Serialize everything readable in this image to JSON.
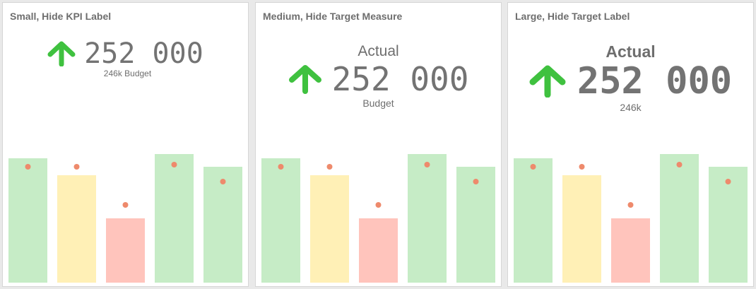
{
  "colors": {
    "good": "#c6ecc6",
    "warn": "#fff0b6",
    "bad": "#ffc4bc",
    "target_dot": "#ee8a6c",
    "arrow": "#3fc13f",
    "text": "#6e6e6e"
  },
  "cards": [
    {
      "title": "Small, Hide KPI Label",
      "kpi_label": "",
      "kpi_value": "252 000",
      "kpi_sub": "246k Budget",
      "arrow_icon": "arrow-up-icon"
    },
    {
      "title": "Medium, Hide Target Measure",
      "kpi_label": "Actual",
      "kpi_value": "252 000",
      "kpi_sub": "Budget",
      "arrow_icon": "arrow-up-icon"
    },
    {
      "title": "Large, Hide Target Label",
      "kpi_label": "Actual",
      "kpi_value": "252 000",
      "kpi_sub": "246k",
      "arrow_icon": "arrow-up-icon"
    }
  ],
  "chart_data": [
    {
      "type": "bar",
      "categories": [
        "",
        "",
        "",
        "",
        ""
      ],
      "series": [
        {
          "values": [
            176,
            152,
            91,
            182,
            164
          ]
        },
        {
          "values": [
            164,
            164,
            110,
            167,
            143
          ]
        }
      ],
      "bar_status": [
        "good",
        "warn",
        "bad",
        "good",
        "good"
      ],
      "ylim": [
        0,
        200
      ],
      "grid": false
    },
    {
      "type": "bar",
      "categories": [
        "",
        "",
        "",
        "",
        ""
      ],
      "series": [
        {
          "values": [
            176,
            152,
            91,
            182,
            164
          ]
        },
        {
          "values": [
            164,
            164,
            110,
            167,
            143
          ]
        }
      ],
      "bar_status": [
        "good",
        "warn",
        "bad",
        "good",
        "good"
      ],
      "ylim": [
        0,
        200
      ],
      "grid": false
    },
    {
      "type": "bar",
      "categories": [
        "",
        "",
        "",
        "",
        ""
      ],
      "series": [
        {
          "values": [
            176,
            152,
            91,
            182,
            164
          ]
        },
        {
          "values": [
            164,
            164,
            110,
            167,
            143
          ]
        }
      ],
      "bar_status": [
        "good",
        "warn",
        "bad",
        "good",
        "good"
      ],
      "ylim": [
        0,
        200
      ],
      "grid": false
    }
  ]
}
